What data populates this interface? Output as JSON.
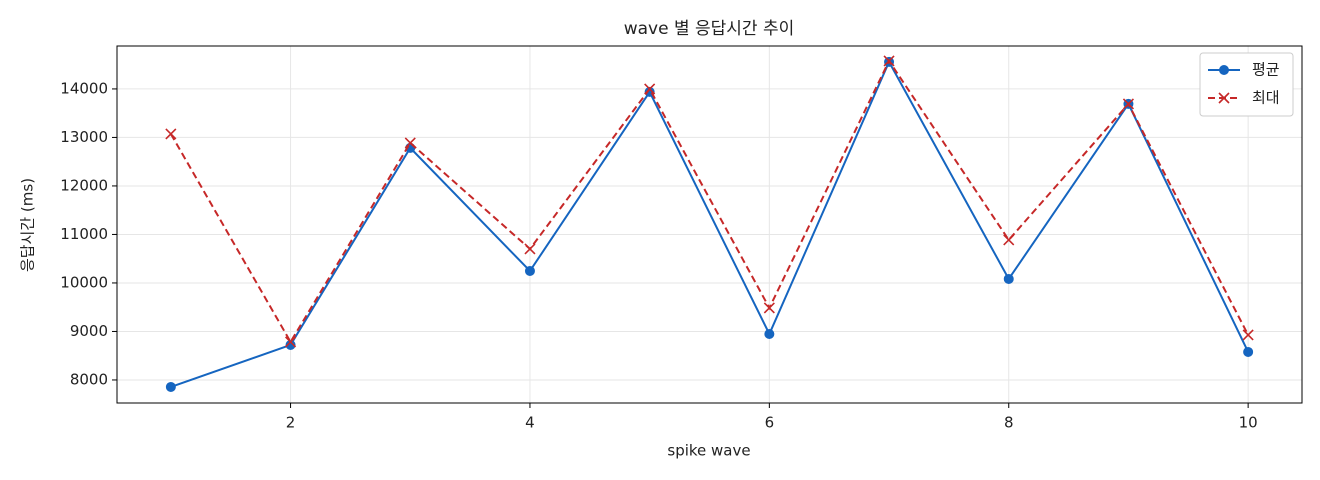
{
  "chart_data": {
    "type": "line",
    "title": "wave 별 응답시간 추이",
    "x_label": "spike wave",
    "y_label": "응답시간 (ms)",
    "x": [
      1,
      2,
      3,
      4,
      5,
      6,
      7,
      8,
      9,
      10
    ],
    "series": [
      {
        "name": "평균",
        "color": "#1565c0",
        "marker": "o",
        "dash": false,
        "values": [
          7856,
          8722,
          12784,
          10247,
          13938,
          8948,
          14557,
          10082,
          13691,
          8577
        ]
      },
      {
        "name": "최대",
        "color": "#c62828",
        "marker": "x",
        "dash": true,
        "values": [
          13072,
          8784,
          12887,
          10701,
          14000,
          9485,
          14577,
          10887,
          13691,
          8928
        ]
      }
    ],
    "xlim": [
      0.55,
      10.45
    ],
    "xticks": [
      2,
      4,
      6,
      8,
      10
    ],
    "ylim": [
      7525,
      14885
    ],
    "yticks": [
      8000,
      9000,
      10000,
      11000,
      12000,
      13000,
      14000
    ],
    "grid": true,
    "legend": "upper right"
  }
}
